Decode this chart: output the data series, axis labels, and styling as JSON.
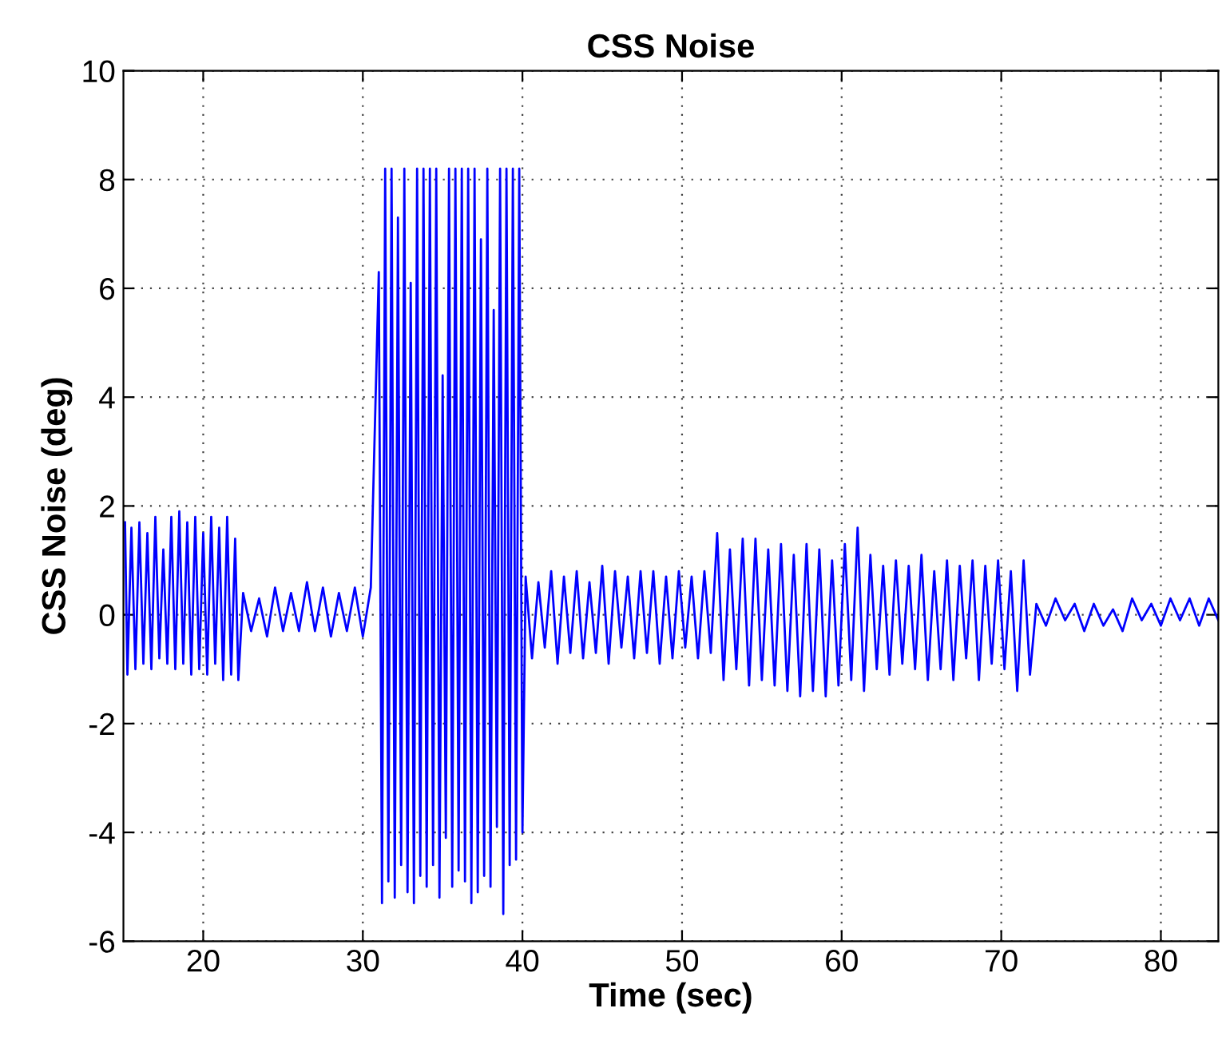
{
  "chart_data": {
    "type": "line",
    "title": "CSS Noise",
    "xlabel": "Time (sec)",
    "ylabel": "CSS Noise (deg)",
    "xlim": [
      15,
      83.6
    ],
    "xticks": [
      20,
      30,
      40,
      50,
      60,
      70,
      80
    ],
    "ylim": [
      -6,
      10
    ],
    "yticks": [
      -6,
      -4,
      -2,
      0,
      2,
      4,
      6,
      8,
      10
    ],
    "grid": true,
    "line_style": "solid",
    "marker": "none",
    "series": [
      {
        "color": "#0000ff",
        "x": [
          15.1,
          15.25,
          15.5,
          15.75,
          16,
          16.25,
          16.5,
          16.75,
          17,
          17.25,
          17.5,
          17.75,
          18,
          18.25,
          18.5,
          18.75,
          19,
          19.25,
          19.5,
          19.75,
          20,
          20.25,
          20.5,
          20.75,
          21,
          21.25,
          21.5,
          21.75,
          22,
          22.2,
          22.5,
          23,
          23.5,
          24,
          24.5,
          25,
          25.5,
          26,
          26.5,
          27,
          27.5,
          28,
          28.5,
          29,
          29.5,
          30,
          30.5,
          31,
          31.2,
          31.4,
          31.6,
          31.8,
          32,
          32.2,
          32.4,
          32.6,
          32.8,
          33,
          33.2,
          33.4,
          33.6,
          33.8,
          34,
          34.2,
          34.4,
          34.6,
          34.8,
          35,
          35.2,
          35.4,
          35.6,
          35.8,
          36,
          36.2,
          36.4,
          36.6,
          36.8,
          37,
          37.2,
          37.4,
          37.6,
          37.8,
          38,
          38.2,
          38.4,
          38.6,
          38.8,
          39,
          39.2,
          39.4,
          39.6,
          39.8,
          40,
          40.2,
          40.6,
          41,
          41.4,
          41.8,
          42.2,
          42.6,
          43,
          43.4,
          43.8,
          44.2,
          44.6,
          45,
          45.4,
          45.8,
          46.2,
          46.6,
          47,
          47.4,
          47.8,
          48.2,
          48.6,
          49,
          49.4,
          49.8,
          50.2,
          50.6,
          51,
          51.4,
          51.8,
          52.2,
          52.6,
          53,
          53.4,
          53.8,
          54.2,
          54.6,
          55,
          55.4,
          55.8,
          56.2,
          56.6,
          57,
          57.4,
          57.8,
          58.2,
          58.6,
          59,
          59.4,
          59.8,
          60.2,
          60.6,
          61,
          61.4,
          61.8,
          62.2,
          62.6,
          63,
          63.4,
          63.8,
          64.2,
          64.6,
          65,
          65.4,
          65.8,
          66.2,
          66.6,
          67,
          67.4,
          67.8,
          68.2,
          68.6,
          69,
          69.4,
          69.8,
          70.2,
          70.6,
          71,
          71.4,
          71.8,
          72.2,
          72.8,
          73.4,
          74,
          74.6,
          75.2,
          75.8,
          76.4,
          77,
          77.6,
          78.2,
          78.8,
          79.4,
          80,
          80.6,
          81.2,
          81.8,
          82.4,
          83,
          83.6
        ],
        "values": [
          1.7,
          -1.1,
          1.6,
          -1.0,
          1.7,
          -0.9,
          1.5,
          -1.0,
          1.8,
          -0.8,
          1.2,
          -0.9,
          1.8,
          -1.0,
          1.9,
          -0.9,
          1.7,
          -1.1,
          1.8,
          -1.0,
          1.5,
          -1.1,
          1.8,
          -0.9,
          1.6,
          -1.2,
          1.8,
          -1.1,
          1.4,
          -1.2,
          0.4,
          -0.3,
          0.3,
          -0.4,
          0.5,
          -0.3,
          0.4,
          -0.3,
          0.6,
          -0.3,
          0.5,
          -0.4,
          0.4,
          -0.3,
          0.5,
          -0.4,
          0.5,
          6.3,
          -5.3,
          8.2,
          -4.9,
          8.2,
          -5.2,
          7.3,
          -4.6,
          8.2,
          -5.1,
          6.1,
          -5.3,
          8.2,
          -4.8,
          8.2,
          -5.0,
          8.2,
          -4.6,
          8.2,
          -5.2,
          4.4,
          -4.1,
          8.2,
          -5.0,
          8.2,
          -4.7,
          8.2,
          -4.9,
          8.2,
          -5.3,
          8.2,
          -5.1,
          6.9,
          -4.8,
          8.2,
          -5.0,
          5.6,
          -3.9,
          8.2,
          -5.5,
          8.2,
          -4.6,
          8.2,
          -4.5,
          8.2,
          -4.0,
          0.7,
          -0.8,
          0.6,
          -0.6,
          0.8,
          -0.9,
          0.7,
          -0.7,
          0.8,
          -0.8,
          0.6,
          -0.7,
          0.9,
          -0.9,
          0.8,
          -0.6,
          0.7,
          -0.8,
          0.8,
          -0.7,
          0.8,
          -0.9,
          0.7,
          -0.8,
          0.8,
          -0.6,
          0.7,
          -0.8,
          0.8,
          -0.7,
          1.5,
          -1.2,
          1.2,
          -1.0,
          1.4,
          -1.3,
          1.4,
          -1.2,
          1.2,
          -1.3,
          1.3,
          -1.4,
          1.1,
          -1.5,
          1.3,
          -1.4,
          1.2,
          -1.5,
          1.0,
          -1.3,
          1.3,
          -1.2,
          1.6,
          -1.4,
          1.1,
          -1.0,
          0.9,
          -1.1,
          1.0,
          -0.9,
          0.9,
          -1.0,
          1.1,
          -1.2,
          0.8,
          -1.0,
          1.0,
          -1.2,
          0.9,
          -0.8,
          1.0,
          -1.2,
          0.9,
          -0.9,
          1.0,
          -1.0,
          0.8,
          -1.4,
          1.0,
          -1.1,
          0.2,
          -0.2,
          0.3,
          -0.1,
          0.2,
          -0.3,
          0.2,
          -0.2,
          0.1,
          -0.3,
          0.3,
          -0.1,
          0.2,
          -0.2,
          0.3,
          -0.1,
          0.3,
          -0.2,
          0.3,
          -0.1
        ]
      }
    ]
  }
}
